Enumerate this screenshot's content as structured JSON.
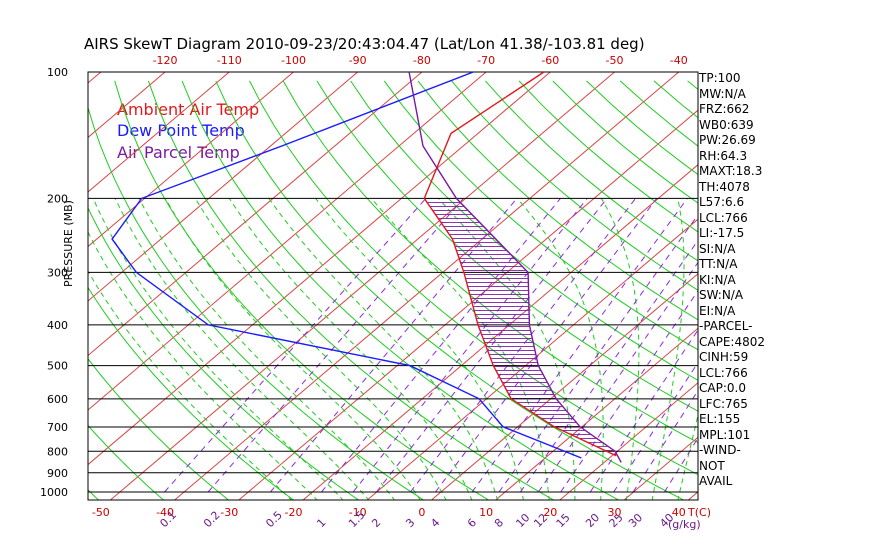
{
  "chart_data": {
    "type": "line",
    "title": "AIRS SkewT Diagram 2010-09-23/20:43:04.47 (Lat/Lon 41.38/-103.81 deg)",
    "ylabel": "PRESSURE (MB)",
    "xlabel_bottom_unit": "T(C)",
    "xlabel_mixing_unit": "(g/kg)",
    "pressure_ticks": [
      "100",
      "200",
      "300",
      "400",
      "500",
      "600",
      "700",
      "800",
      "900",
      "1000"
    ],
    "pressure_tick_values": [
      100,
      200,
      300,
      400,
      500,
      600,
      700,
      800,
      900,
      1000
    ],
    "ylim": [
      100,
      1000
    ],
    "yscale": "log",
    "top_temp_labels": [
      "-120",
      "-110",
      "-100",
      "-90",
      "-80",
      "-70",
      "-60",
      "-50",
      "-40"
    ],
    "top_temp_values": [
      -120,
      -110,
      -100,
      -90,
      -80,
      -70,
      -60,
      -50,
      -40
    ],
    "bottom_temp_labels": [
      "-50",
      "-40",
      "-30",
      "-20",
      "-10",
      "0",
      "10",
      "20",
      "30",
      "40"
    ],
    "bottom_temp_values": [
      -50,
      -40,
      -30,
      -20,
      -10,
      0,
      10,
      20,
      30,
      40
    ],
    "xlim_bottom": [
      -52,
      43
    ],
    "mixing_ratio_labels": [
      "0.1",
      "0.2",
      "0.5",
      "1",
      "1.5",
      "2",
      "3",
      "4",
      "6",
      "8",
      "10",
      "12",
      "15",
      "20",
      "25",
      "30",
      "40"
    ],
    "legend": [
      {
        "label": "Ambient Air Temp",
        "color": "#e01a1a"
      },
      {
        "label": "Dew Point Temp",
        "color": "#1a1aff"
      },
      {
        "label": "Air Parcel Temp",
        "color": "#7a1aa0"
      }
    ],
    "series": [
      {
        "name": "Ambient Air Temp",
        "points": [
          [
            100,
            -61
          ],
          [
            140,
            -64
          ],
          [
            200,
            -56
          ],
          [
            250,
            -44
          ],
          [
            300,
            -36
          ],
          [
            400,
            -24
          ],
          [
            500,
            -14
          ],
          [
            600,
            -5
          ],
          [
            700,
            7
          ],
          [
            820,
            22
          ]
        ]
      },
      {
        "name": "Dew Point Temp",
        "points": [
          [
            100,
            -72
          ],
          [
            150,
            -88
          ],
          [
            200,
            -100
          ],
          [
            250,
            -97
          ],
          [
            300,
            -87
          ],
          [
            400,
            -66
          ],
          [
            500,
            -27
          ],
          [
            600,
            -10
          ],
          [
            700,
            -1
          ],
          [
            830,
            17
          ]
        ]
      },
      {
        "name": "Air Parcel Temp",
        "points": [
          [
            100,
            -82
          ],
          [
            150,
            -66
          ],
          [
            200,
            -51
          ],
          [
            300,
            -26
          ],
          [
            400,
            -16
          ],
          [
            500,
            -7
          ],
          [
            600,
            2
          ],
          [
            700,
            11
          ],
          [
            800,
            21
          ],
          [
            850,
            24
          ]
        ]
      }
    ],
    "grid": true,
    "cape_hatching": true
  },
  "stats": [
    "TP:100",
    "MW:N/A",
    "FRZ:662",
    "WB0:639",
    "PW:26.69",
    "RH:64.3",
    "MAXT:18.3",
    "TH:4078",
    "L57:6.6",
    "LCL:766",
    "LI:-17.5",
    "SI:N/A",
    "TT:N/A",
    "KI:N/A",
    "SW:N/A",
    "EI:N/A",
    "-PARCEL-",
    "CAPE:4802",
    "CINH:59",
    "LCL:766",
    "CAP:0.0",
    "LFC:765",
    "EL:155",
    "MPL:101",
    "-WIND-",
    " NOT",
    "AVAIL"
  ],
  "colors": {
    "temp": "#e01a1a",
    "dew": "#1a1aff",
    "parcel": "#7a1aa0",
    "isotherm": "#d94545",
    "dry_adiabat": "#20cc20",
    "mixing": "#8a2be2",
    "isobar": "#000000",
    "top_labels": "#cc0000",
    "bottom_labels": "#cc0000",
    "mixing_labels": "#6a1a8a"
  }
}
